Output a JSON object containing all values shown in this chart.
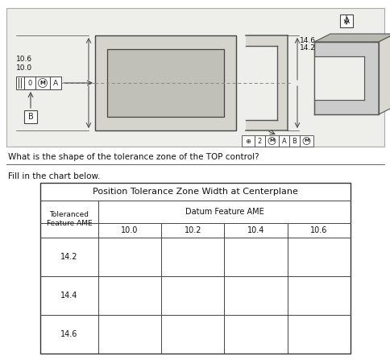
{
  "bg_color": "#ffffff",
  "drawing_bg": "#eeeeea",
  "question_text": "What is the shape of the tolerance zone of the TOP control?",
  "fill_text": "Fill in the chart below.",
  "table_title": "Position Tolerance Zone Width at Centerplane",
  "col_header_main": "Datum Feature AME",
  "row_header_main": "Toleranced\nFeature AME",
  "col_values": [
    "10.0",
    "10.2",
    "10.4",
    "10.6"
  ],
  "row_values": [
    "14.2",
    "14.4",
    "14.6"
  ],
  "dim_top_label1": "10.6",
  "dim_top_label2": "10.0",
  "dim_bot_label1": "14.6",
  "dim_bot_label2": "14.2",
  "text_color": "#111111",
  "line_color": "#555555",
  "fcf_segments_top": [
    "",
    "0",
    "M",
    "A"
  ],
  "fcf_segments_bot": [
    "+",
    "2",
    "M",
    "A",
    "B",
    "M"
  ]
}
